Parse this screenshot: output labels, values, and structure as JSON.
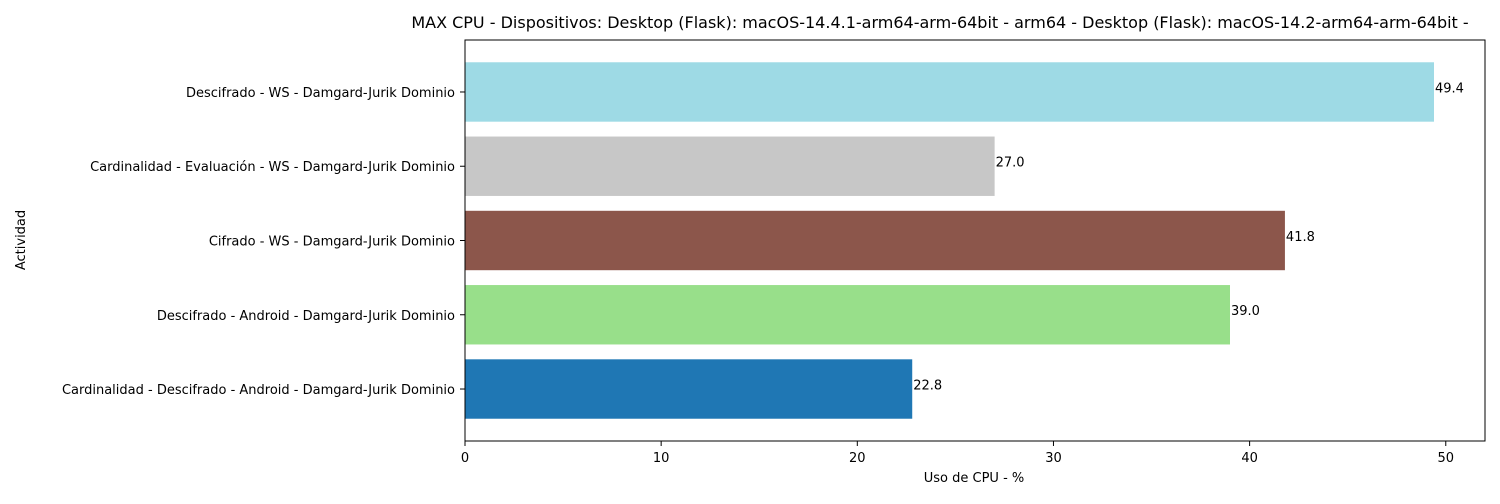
{
  "chart_data": {
    "type": "bar",
    "orientation": "horizontal",
    "title": "MAX CPU - Dispositivos: Desktop (Flask): macOS-14.4.1-arm64-arm-64bit - arm64 - Desktop (Flask): macOS-14.2-arm64-arm-64bit -",
    "xlabel": "Uso de CPU - %",
    "ylabel": "Actividad",
    "xlim": [
      0,
      52
    ],
    "xticks": [
      0,
      10,
      20,
      30,
      40,
      50
    ],
    "grid": false,
    "legend": "none",
    "categories": [
      "Cardinalidad - Descifrado - Android - Damgard-Jurik Dominio",
      "Descifrado - Android - Damgard-Jurik Dominio",
      "Cifrado - WS - Damgard-Jurik Dominio",
      "Cardinalidad - Evaluación - WS - Damgard-Jurik Dominio",
      "Descifrado - WS - Damgard-Jurik Dominio"
    ],
    "values": [
      22.8,
      39.0,
      41.8,
      27.0,
      49.4
    ],
    "value_labels": [
      "22.8",
      "39.0",
      "41.8",
      "27.0",
      "49.4"
    ],
    "colors": [
      "#1f77b4",
      "#98df8a",
      "#8c564b",
      "#c7c7c7",
      "#9edae5"
    ]
  }
}
